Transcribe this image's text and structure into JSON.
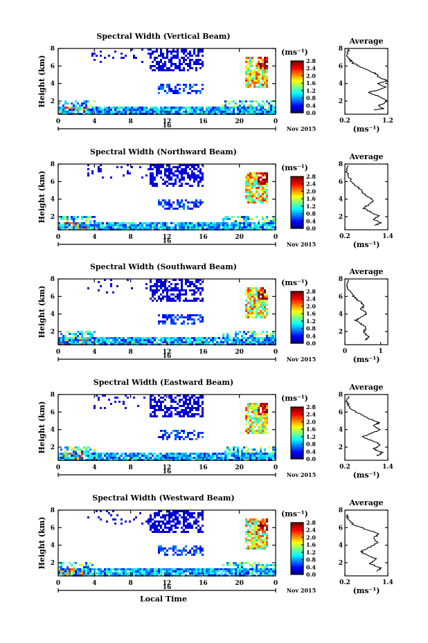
{
  "chart_data": [
    {
      "type": "heatmap",
      "title": "Spectral Width (Vertical Beam)",
      "ylabel": "Height (km)",
      "yticks": [
        "2",
        "4",
        "6",
        "8"
      ],
      "ylim": [
        0.5,
        8
      ],
      "xticks": [
        "0",
        "4",
        "8",
        "12",
        "16",
        "20",
        "0"
      ],
      "xlim": [
        0,
        24
      ],
      "date_label": "16",
      "month_label": "Nov 2015",
      "colorbar": {
        "unit": "(ms⁻¹)",
        "ticks": [
          "0.0",
          "0.4",
          "0.8",
          "1.2",
          "1.6",
          "2.0",
          "2.4",
          "2.8"
        ],
        "range": [
          0.0,
          2.8
        ]
      },
      "average": {
        "title": "Average",
        "xlabel": "(ms⁻¹)",
        "xticks": [
          "0.2",
          "1.2"
        ],
        "xlim": [
          0.2,
          1.2
        ],
        "yticks": [
          "2",
          "4",
          "6",
          "8"
        ],
        "ylim": [
          0.5,
          8
        ],
        "profile": [
          [
            0.9,
            1.0
          ],
          [
            1.1,
            1.15
          ],
          [
            1.0,
            1.5
          ],
          [
            1.2,
            2.0
          ],
          [
            0.95,
            2.6
          ],
          [
            0.75,
            3.0
          ],
          [
            1.0,
            3.3
          ],
          [
            1.15,
            3.6
          ],
          [
            0.95,
            4.0
          ],
          [
            1.2,
            4.3
          ],
          [
            1.0,
            4.7
          ],
          [
            0.9,
            5.2
          ],
          [
            0.6,
            5.8
          ],
          [
            0.4,
            6.3
          ],
          [
            0.3,
            6.8
          ],
          [
            0.25,
            7.4
          ],
          [
            0.3,
            7.9
          ]
        ]
      }
    },
    {
      "type": "heatmap",
      "title": "Spectral Width (Northward Beam)",
      "ylabel": "Height (km)",
      "yticks": [
        "2",
        "4",
        "6",
        "8"
      ],
      "ylim": [
        0.5,
        8
      ],
      "xticks": [
        "0",
        "4",
        "8",
        "12",
        "16",
        "20",
        "0"
      ],
      "xlim": [
        0,
        24
      ],
      "date_label": "16",
      "month_label": "Nov 2015",
      "colorbar": {
        "unit": "(ms⁻¹)",
        "ticks": [
          "0.0",
          "0.4",
          "0.8",
          "1.2",
          "1.6",
          "2.0",
          "2.4",
          "2.8"
        ],
        "range": [
          0.0,
          2.8
        ]
      },
      "average": {
        "title": "Average",
        "xlabel": "(ms⁻¹)",
        "xticks": [
          "0.2",
          "1.4"
        ],
        "xlim": [
          0.2,
          1.4
        ],
        "yticks": [
          "2",
          "4",
          "6",
          "8"
        ],
        "ylim": [
          0.5,
          8
        ],
        "profile": [
          [
            1.05,
            1.0
          ],
          [
            1.2,
            1.3
          ],
          [
            1.0,
            1.7
          ],
          [
            1.15,
            2.1
          ],
          [
            0.9,
            2.6
          ],
          [
            0.7,
            3.0
          ],
          [
            0.9,
            3.4
          ],
          [
            1.0,
            3.9
          ],
          [
            0.8,
            4.3
          ],
          [
            0.7,
            4.8
          ],
          [
            0.55,
            5.4
          ],
          [
            0.4,
            6.0
          ],
          [
            0.3,
            6.6
          ],
          [
            0.25,
            7.2
          ],
          [
            0.3,
            7.8
          ]
        ]
      }
    },
    {
      "type": "heatmap",
      "title": "Spectral Width (Southward Beam)",
      "ylabel": "Height (km)",
      "yticks": [
        "2",
        "4",
        "6",
        "8"
      ],
      "ylim": [
        0.5,
        8
      ],
      "xticks": [
        "0",
        "4",
        "8",
        "12",
        "16",
        "20",
        "0"
      ],
      "xlim": [
        0,
        24
      ],
      "date_label": "16",
      "month_label": "Nov 2015",
      "colorbar": {
        "unit": "(ms⁻¹)",
        "ticks": [
          "0.0",
          "0.4",
          "0.8",
          "1.2",
          "1.6",
          "2.0",
          "2.4",
          "2.8"
        ],
        "range": [
          0.0,
          2.8
        ]
      },
      "average": {
        "title": "Average",
        "xlabel": "(ms⁻¹)",
        "xticks": [
          "0",
          "1"
        ],
        "xlim": [
          0,
          1.2
        ],
        "yticks": [
          "2",
          "4",
          "6",
          "8"
        ],
        "ylim": [
          0.5,
          8
        ],
        "profile": [
          [
            0.55,
            1.0
          ],
          [
            0.7,
            1.4
          ],
          [
            0.5,
            1.9
          ],
          [
            0.6,
            2.4
          ],
          [
            0.45,
            2.9
          ],
          [
            0.3,
            3.3
          ],
          [
            0.5,
            3.7
          ],
          [
            0.6,
            4.1
          ],
          [
            0.45,
            4.6
          ],
          [
            0.55,
            5.0
          ],
          [
            0.35,
            5.6
          ],
          [
            0.2,
            6.2
          ],
          [
            0.1,
            6.8
          ],
          [
            0.05,
            7.4
          ],
          [
            0.1,
            7.9
          ]
        ]
      }
    },
    {
      "type": "heatmap",
      "title": "Spectral Width (Eastward Beam)",
      "ylabel": "Height (km)",
      "yticks": [
        "2",
        "4",
        "6",
        "8"
      ],
      "ylim": [
        0.5,
        8
      ],
      "xticks": [
        "0",
        "4",
        "8",
        "12",
        "16",
        "20",
        "0"
      ],
      "xlim": [
        0,
        24
      ],
      "date_label": "16",
      "month_label": "Nov 2015",
      "colorbar": {
        "unit": "(ms⁻¹)",
        "ticks": [
          "0.0",
          "0.4",
          "0.8",
          "1.2",
          "1.6",
          "2.0",
          "2.4",
          "2.8"
        ],
        "range": [
          0.0,
          2.8
        ]
      },
      "average": {
        "title": "Average",
        "xlabel": "(ms⁻¹)",
        "xticks": [
          "0.2",
          "1.4"
        ],
        "xlim": [
          0.2,
          1.4
        ],
        "yticks": [
          "2",
          "4",
          "6",
          "8"
        ],
        "ylim": [
          0.5,
          8
        ],
        "profile": [
          [
            1.1,
            1.0
          ],
          [
            1.25,
            1.4
          ],
          [
            1.0,
            1.8
          ],
          [
            1.2,
            2.3
          ],
          [
            0.9,
            2.8
          ],
          [
            0.7,
            3.2
          ],
          [
            0.95,
            3.6
          ],
          [
            1.2,
            4.0
          ],
          [
            1.0,
            4.4
          ],
          [
            1.15,
            4.8
          ],
          [
            0.85,
            5.3
          ],
          [
            0.55,
            5.9
          ],
          [
            0.35,
            6.5
          ],
          [
            0.25,
            7.1
          ],
          [
            0.3,
            7.8
          ]
        ]
      }
    },
    {
      "type": "heatmap",
      "title": "Spectral Width (Westward Beam)",
      "ylabel": "Height (km)",
      "yticks": [
        "2",
        "4",
        "6",
        "8"
      ],
      "ylim": [
        0.5,
        8
      ],
      "xticks": [
        "0",
        "4",
        "8",
        "12",
        "16",
        "20",
        "0"
      ],
      "xlim": [
        0,
        24
      ],
      "date_label": "16",
      "month_label": "Nov 2015",
      "xlabel": "Local Time",
      "colorbar": {
        "unit": "(ms⁻¹)",
        "ticks": [
          "0.0",
          "0.4",
          "0.8",
          "1.2",
          "1.6",
          "2.0",
          "2.4",
          "2.8"
        ],
        "range": [
          0.0,
          2.8
        ]
      },
      "average": {
        "title": "Average",
        "xlabel": "(ms⁻¹)",
        "xticks": [
          "0.2",
          "1.4"
        ],
        "xlim": [
          0.2,
          1.4
        ],
        "yticks": [
          "2",
          "4",
          "6",
          "8"
        ],
        "ylim": [
          0.5,
          8
        ],
        "profile": [
          [
            1.1,
            1.0
          ],
          [
            1.2,
            1.4
          ],
          [
            0.9,
            1.9
          ],
          [
            1.1,
            2.4
          ],
          [
            0.8,
            2.9
          ],
          [
            0.65,
            3.3
          ],
          [
            0.9,
            3.8
          ],
          [
            1.1,
            4.3
          ],
          [
            1.0,
            4.8
          ],
          [
            1.15,
            5.3
          ],
          [
            0.8,
            5.8
          ],
          [
            0.45,
            6.3
          ],
          [
            0.3,
            6.9
          ],
          [
            0.25,
            7.5
          ]
        ]
      }
    }
  ],
  "colors": {
    "colormap": [
      "#00007f",
      "#0000ff",
      "#0080ff",
      "#00ffff",
      "#80ff80",
      "#ffff00",
      "#ff8000",
      "#ff0000",
      "#7f0000"
    ],
    "dark_blue": "#2020a0",
    "axis": "#000000"
  }
}
